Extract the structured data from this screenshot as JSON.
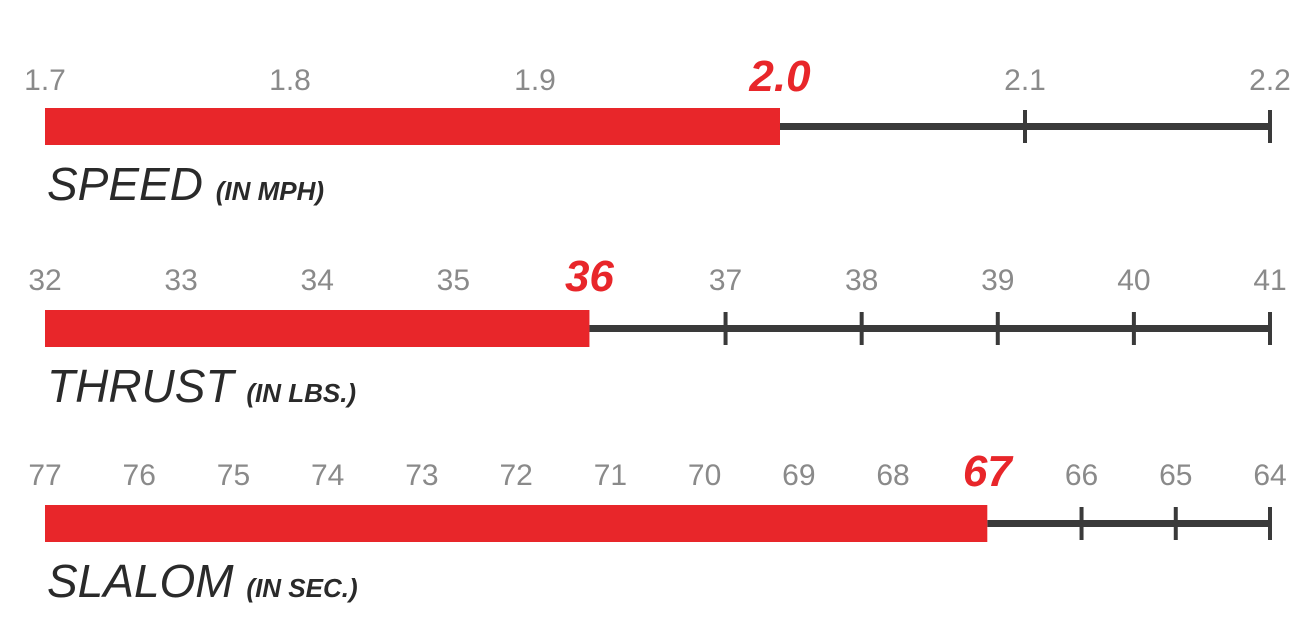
{
  "colors": {
    "bar": "#e8262a",
    "axis": "#3a3a3a",
    "tick_label": "#8a8a8a",
    "highlight": "#e8262a"
  },
  "chart_data": [
    {
      "type": "bar",
      "name": "SPEED",
      "unit": "(IN MPH)",
      "ticks": [
        "1.7",
        "1.8",
        "1.9",
        "2.0",
        "2.1",
        "2.2"
      ],
      "tick_values": [
        1.7,
        1.8,
        1.9,
        2.0,
        2.1,
        2.2
      ],
      "xlim": [
        1.7,
        2.2
      ],
      "value": 2.0,
      "value_label": "2.0"
    },
    {
      "type": "bar",
      "name": "THRUST",
      "unit": "(IN LBS.)",
      "ticks": [
        "32",
        "33",
        "34",
        "35",
        "36",
        "37",
        "38",
        "39",
        "40",
        "41"
      ],
      "tick_values": [
        32,
        33,
        34,
        35,
        36,
        37,
        38,
        39,
        40,
        41
      ],
      "xlim": [
        32,
        41
      ],
      "value": 36,
      "value_label": "36"
    },
    {
      "type": "bar",
      "name": "SLALOM",
      "unit": "(IN SEC.)",
      "ticks": [
        "77",
        "76",
        "75",
        "74",
        "73",
        "72",
        "71",
        "70",
        "69",
        "68",
        "67",
        "66",
        "65",
        "64"
      ],
      "tick_values": [
        77,
        76,
        75,
        74,
        73,
        72,
        71,
        70,
        69,
        68,
        67,
        66,
        65,
        64
      ],
      "xlim": [
        77,
        64
      ],
      "value": 67,
      "value_label": "67"
    }
  ]
}
